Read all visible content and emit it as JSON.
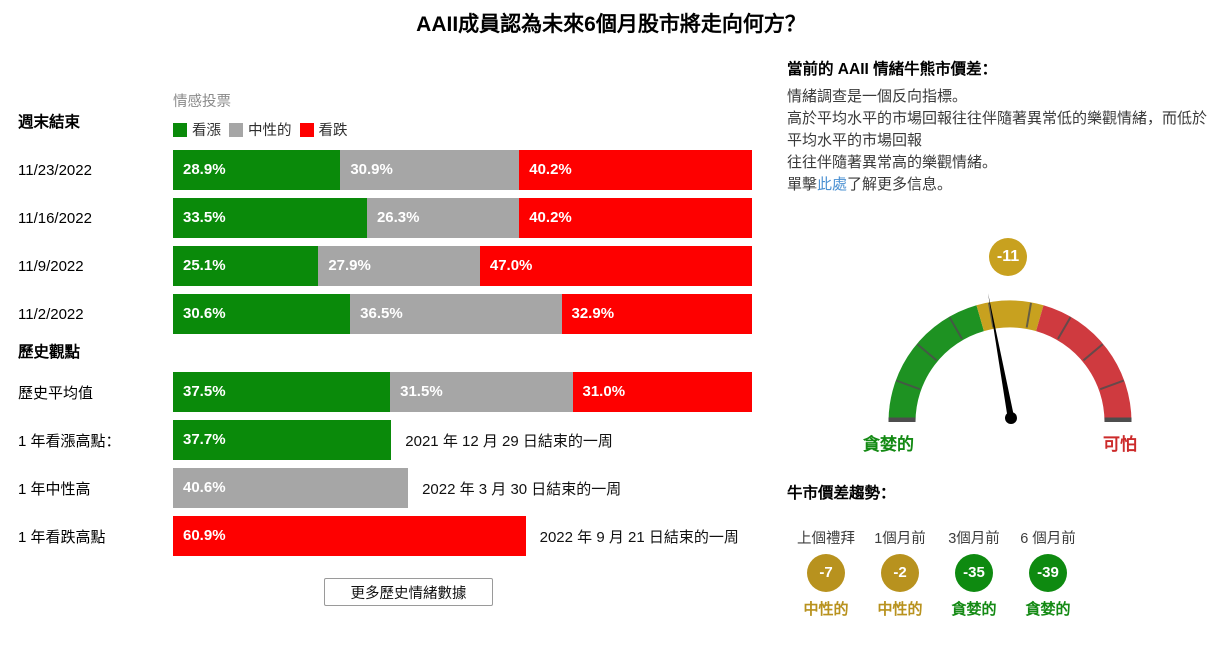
{
  "title": "AAII成員認為未來6個月股市將走向何方？",
  "colors": {
    "bullish": "#0a8a0a",
    "neutral": "#a6a6a6",
    "bearish": "#fe0000",
    "gaugeGreen": "#1e9222",
    "gaugeGold": "#c8a11f",
    "gaugeRed": "#cf3a3f",
    "circleGold": "#b8921e",
    "circleGreen": "#0e8a10",
    "greenText": "#148a14",
    "redText": "#cc2b2b",
    "link": "#4a90d2",
    "mutedText": "#8a8a8a"
  },
  "chart_data": [
    {
      "name": "sentiment-votes",
      "type": "bar",
      "stacked": true,
      "unit": "%",
      "xlim": [
        0,
        100
      ],
      "legend_title": "情感投票",
      "legend": [
        {
          "key": "bullish",
          "label": "看漲"
        },
        {
          "key": "neutral",
          "label": "中性的"
        },
        {
          "key": "bearish",
          "label": "看跌"
        }
      ],
      "axis_header": "週末結束",
      "rows": [
        {
          "label": "11/23/2022",
          "segments": [
            {
              "key": "bullish",
              "value": 28.9
            },
            {
              "key": "neutral",
              "value": 30.9
            },
            {
              "key": "bearish",
              "value": 40.2
            }
          ]
        },
        {
          "label": "11/16/2022",
          "segments": [
            {
              "key": "bullish",
              "value": 33.5
            },
            {
              "key": "neutral",
              "value": 26.3
            },
            {
              "key": "bearish",
              "value": 40.2
            }
          ]
        },
        {
          "label": "11/9/2022",
          "segments": [
            {
              "key": "bullish",
              "value": 25.1
            },
            {
              "key": "neutral",
              "value": 27.9
            },
            {
              "key": "bearish",
              "value": 47.0
            }
          ]
        },
        {
          "label": "11/2/2022",
          "segments": [
            {
              "key": "bullish",
              "value": 30.6
            },
            {
              "key": "neutral",
              "value": 36.5
            },
            {
              "key": "bearish",
              "value": 32.9
            }
          ]
        },
        {
          "section": "歷史觀點"
        },
        {
          "label": "歷史平均值",
          "segments": [
            {
              "key": "bullish",
              "value": 37.5
            },
            {
              "key": "neutral",
              "value": 31.5
            },
            {
              "key": "bearish",
              "value": 31.0
            }
          ]
        },
        {
          "label": "1 年看漲高點：",
          "segments": [
            {
              "key": "bullish",
              "value": 37.7
            }
          ],
          "annotation": "2021 年 12 月 29 日結束的一周"
        },
        {
          "label": "1 年中性高",
          "segments": [
            {
              "key": "neutral",
              "value": 40.6
            }
          ],
          "annotation": "2022 年 3 月 30 日結束的一周"
        },
        {
          "label": "1 年看跌高點",
          "segments": [
            {
              "key": "bearish",
              "value": 60.9
            }
          ],
          "annotation": "2022 年 9 月 21 日結束的一周"
        }
      ]
    },
    {
      "name": "bull-bear-spread-gauge",
      "type": "gauge",
      "value": -11,
      "value_label": "-11",
      "left_label": "貪婪的",
      "right_label": "可怕"
    },
    {
      "name": "bull-spread-trend",
      "type": "badge-row",
      "title": "牛市價差趨勢：",
      "items": [
        {
          "period": "上個禮拜",
          "value": "-7",
          "label": "中性的",
          "tone": "neutral"
        },
        {
          "period": "1個月前",
          "value": "-2",
          "label": "中性的",
          "tone": "neutral"
        },
        {
          "period": "3個月前",
          "value": "-35",
          "label": "貪婪的",
          "tone": "greedy"
        },
        {
          "period": "6 個月前",
          "value": "-39",
          "label": "貪婪的",
          "tone": "greedy"
        }
      ]
    }
  ],
  "current": {
    "heading": "當前的 AAII 情緒牛熊市價差：",
    "lines": [
      "情緒調查是一個反向指標。",
      "高於平均水平的市場回報往往伴隨著異常低的樂觀情緒，而低於平均水平的市場回報",
      "往往伴隨著異常高的樂觀情緒。"
    ],
    "link_prefix": "單擊",
    "link_text": "此處",
    "link_suffix": "了解更多信息。"
  },
  "buttons": {
    "more_history": "更多歷史情緒數據"
  }
}
